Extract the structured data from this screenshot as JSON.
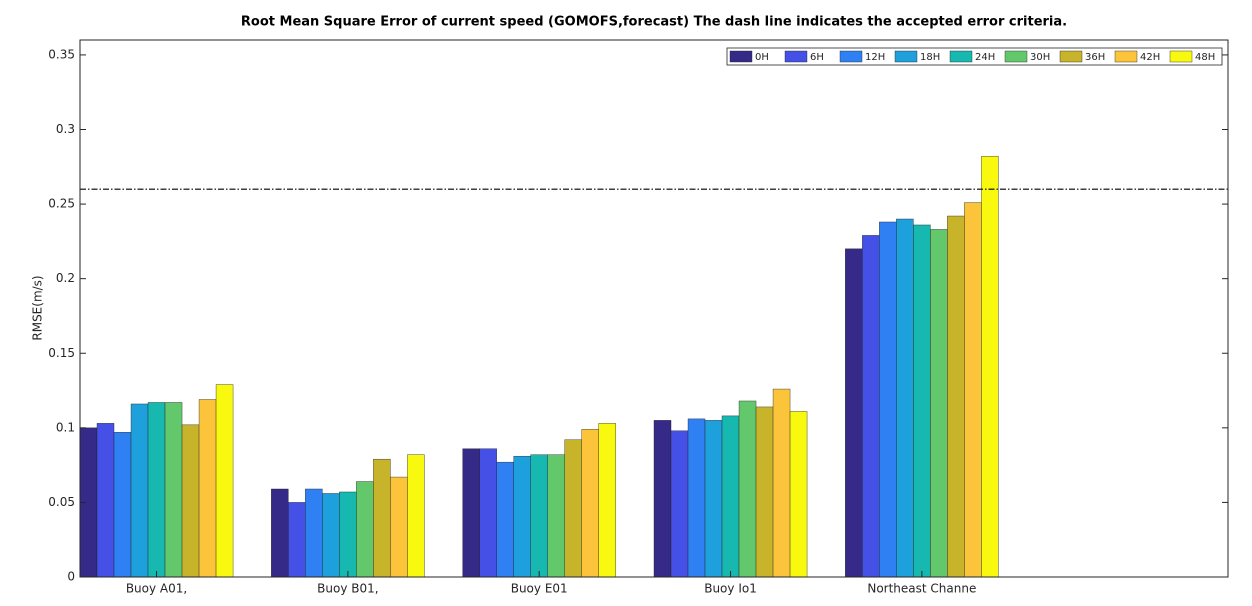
{
  "chart_data": {
    "type": "bar",
    "title": "Root Mean Square Error of current speed  (GOMOFS,forecast)   The dash line indicates the accepted error criteria.",
    "y_label": "RMSE(m/s)",
    "categories": [
      "Buoy A01,",
      "Buoy B01,",
      "Buoy E01",
      "Buoy Io1",
      "Northeast Channe"
    ],
    "series": [
      {
        "name": "0H",
        "color": "#352a87",
        "values": [
          0.1,
          0.059,
          0.086,
          0.105,
          0.22
        ]
      },
      {
        "name": "6H",
        "color": "#4551e6",
        "values": [
          0.103,
          0.05,
          0.086,
          0.098,
          0.229
        ]
      },
      {
        "name": "12H",
        "color": "#2f80f2",
        "values": [
          0.097,
          0.059,
          0.077,
          0.106,
          0.238
        ]
      },
      {
        "name": "18H",
        "color": "#1ea0dd",
        "values": [
          0.116,
          0.056,
          0.081,
          0.105,
          0.24
        ]
      },
      {
        "name": "24H",
        "color": "#16b8b0",
        "values": [
          0.117,
          0.057,
          0.082,
          0.108,
          0.236
        ]
      },
      {
        "name": "30H",
        "color": "#63c86c",
        "values": [
          0.117,
          0.064,
          0.082,
          0.118,
          0.233
        ]
      },
      {
        "name": "36H",
        "color": "#c8b42b",
        "values": [
          0.102,
          0.079,
          0.092,
          0.114,
          0.242
        ]
      },
      {
        "name": "42H",
        "color": "#fcc43a",
        "values": [
          0.119,
          0.067,
          0.099,
          0.126,
          0.251
        ]
      },
      {
        "name": "48H",
        "color": "#f9f90f",
        "values": [
          0.129,
          0.082,
          0.103,
          0.111,
          0.282
        ]
      }
    ],
    "reference_line": 0.26,
    "ylim": [
      0,
      0.36
    ],
    "yticks": [
      0,
      0.05,
      0.1,
      0.15,
      0.2,
      0.25,
      0.3,
      0.35
    ],
    "grid": false,
    "legend": "top-right"
  }
}
